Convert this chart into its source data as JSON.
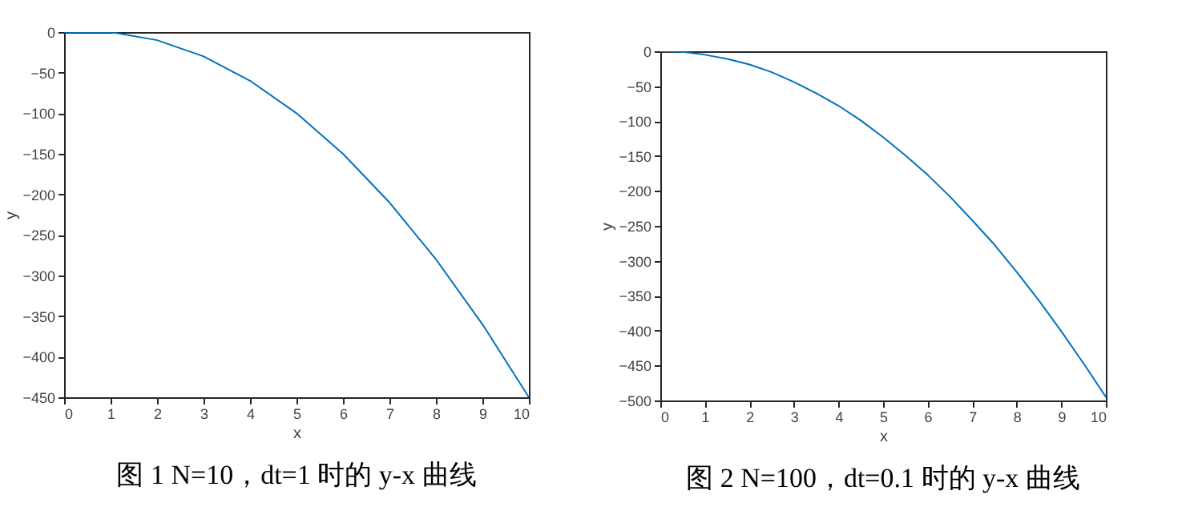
{
  "chart_data": [
    {
      "type": "line",
      "xlabel": "x",
      "ylabel": "y",
      "xlim": [
        0,
        10
      ],
      "ylim": [
        -450,
        0
      ],
      "xticks": [
        0,
        1,
        2,
        3,
        4,
        5,
        6,
        7,
        8,
        9,
        10
      ],
      "yticks": [
        -450,
        -400,
        -350,
        -300,
        -250,
        -200,
        -150,
        -100,
        -50,
        0
      ],
      "annotations": [
        "图 1 N=10，dt=1 时的 y-x 曲线"
      ],
      "series": [
        {
          "color": "#0072bd",
          "x": [
            0,
            1,
            2,
            3,
            4,
            5,
            6,
            7,
            8,
            9,
            10
          ],
          "values": [
            0,
            0,
            -10,
            -30,
            -60,
            -100,
            -150,
            -210,
            -280,
            -360,
            -450
          ]
        }
      ]
    },
    {
      "type": "line",
      "xlabel": "x",
      "ylabel": "y",
      "xlim": [
        0,
        10
      ],
      "ylim": [
        -500,
        0
      ],
      "xticks": [
        0,
        1,
        2,
        3,
        4,
        5,
        6,
        7,
        8,
        9,
        10
      ],
      "yticks": [
        -500,
        -450,
        -400,
        -350,
        -300,
        -250,
        -200,
        -150,
        -100,
        -50,
        0
      ],
      "annotations": [
        "图 2 N=100，dt=0.1 时的 y-x 曲线"
      ],
      "series": [
        {
          "color": "#0072bd",
          "x": [
            0,
            0.5,
            1,
            1.5,
            2,
            2.5,
            3,
            3.5,
            4,
            4.5,
            5,
            5.5,
            6,
            6.5,
            7,
            7.5,
            8,
            8.5,
            9,
            9.5,
            10
          ],
          "values": [
            0,
            -1,
            -5,
            -11,
            -19,
            -30,
            -44,
            -60,
            -78,
            -99,
            -123,
            -149,
            -177,
            -208,
            -242,
            -277,
            -316,
            -357,
            -401,
            -447,
            -495
          ]
        }
      ]
    }
  ]
}
